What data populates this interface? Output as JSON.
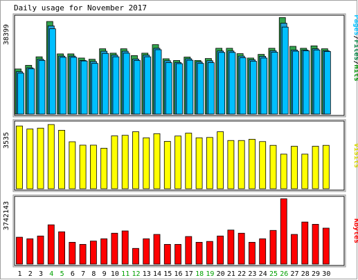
{
  "chart_data": [
    {
      "type": "bar",
      "title": "Daily usage for November 2017",
      "ymax_label": "38399",
      "ylim": [
        0,
        40000
      ],
      "categories": [
        "1",
        "2",
        "3",
        "4",
        "5",
        "6",
        "7",
        "8",
        "9",
        "10",
        "11",
        "12",
        "13",
        "14",
        "15",
        "16",
        "17",
        "18",
        "19",
        "20",
        "21",
        "22",
        "23",
        "24",
        "25",
        "26",
        "27",
        "28",
        "29",
        "30"
      ],
      "weekend_days": [
        "4",
        "5",
        "11",
        "12",
        "18",
        "19",
        "25",
        "26"
      ],
      "legend": [
        {
          "text": "Pages",
          "color": "#00c0ff"
        },
        {
          "text": "/",
          "color": "#000000"
        },
        {
          "text": "Files",
          "color": "#008040"
        },
        {
          "text": "/",
          "color": "#000000"
        },
        {
          "text": "Hits",
          "color": "#009000"
        }
      ],
      "series": [
        {
          "name": "Hits",
          "color": "#33a34d",
          "values": [
            18500,
            20000,
            23500,
            38000,
            24700,
            24700,
            23000,
            22500,
            26800,
            25000,
            26800,
            24000,
            25000,
            28500,
            22700,
            22000,
            23400,
            22000,
            22800,
            27000,
            27000,
            24800,
            23000,
            24500,
            27000,
            39600,
            27800,
            27000,
            28000,
            26800
          ]
        },
        {
          "name": "Files",
          "color": "#1e9fd6",
          "values": [
            17400,
            19000,
            22500,
            36200,
            23800,
            23800,
            22000,
            21600,
            25800,
            24200,
            25800,
            22600,
            24200,
            27000,
            21900,
            21200,
            22700,
            21400,
            21900,
            25900,
            25900,
            23800,
            22300,
            23700,
            26000,
            37300,
            26300,
            26300,
            26800,
            26000
          ]
        },
        {
          "name": "Pages",
          "color": "#00bfff",
          "values": [
            16800,
            18600,
            22000,
            35000,
            23300,
            23300,
            21800,
            20800,
            24900,
            23500,
            25000,
            22000,
            23500,
            26400,
            21100,
            20700,
            22100,
            20800,
            21100,
            25300,
            25300,
            23100,
            21700,
            23000,
            25400,
            35700,
            25800,
            26000,
            26300,
            25700
          ]
        }
      ]
    },
    {
      "type": "bar",
      "ymax_label": "3535",
      "ylim": [
        0,
        3700
      ],
      "legend": [
        {
          "text": "Visits",
          "color": "#d8d800"
        }
      ],
      "series": [
        {
          "name": "Visits",
          "color": "#ffff00",
          "values": [
            3500,
            3330,
            3380,
            3580,
            3260,
            2620,
            2430,
            2430,
            2260,
            2950,
            2980,
            3180,
            2840,
            3070,
            2640,
            2940,
            3100,
            2840,
            2860,
            3180,
            2690,
            2690,
            2760,
            2630,
            2420,
            1930,
            2370,
            1930,
            2370,
            2420
          ]
        }
      ]
    },
    {
      "type": "bar",
      "ymax_label": "3742143",
      "ylim": [
        0,
        3800000
      ],
      "legend": [
        {
          "text": "KBytes",
          "color": "#ff0000"
        }
      ],
      "series": [
        {
          "name": "KBytes",
          "color": "#ff0000",
          "values": [
            1540000,
            1450000,
            1610000,
            2250000,
            1850000,
            1250000,
            1130000,
            1320000,
            1450000,
            1770000,
            1900000,
            900000,
            1450000,
            1700000,
            1130000,
            1130000,
            1580000,
            1250000,
            1300000,
            1610000,
            1950000,
            1770000,
            1250000,
            1450000,
            1930000,
            3740000,
            1700000,
            2410000,
            2280000,
            2060000
          ]
        }
      ]
    }
  ]
}
